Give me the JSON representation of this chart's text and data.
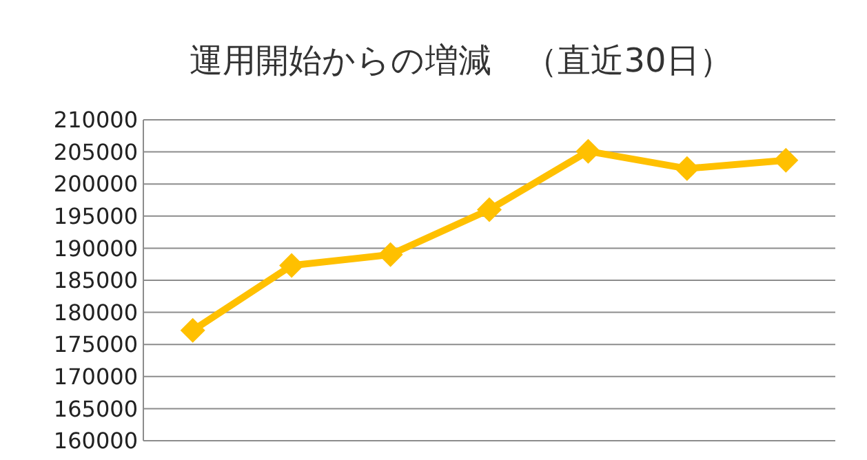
{
  "chart_data": {
    "type": "line",
    "title": "運用開始からの増減　（直近30日）",
    "categories": [
      null,
      null,
      null,
      null,
      null,
      null,
      null
    ],
    "series": [
      {
        "color": "#ffc000",
        "values": [
          177200,
          187300,
          189000,
          196000,
          205100,
          202400,
          203700
        ]
      }
    ],
    "ylim": [
      160000,
      210000
    ],
    "yticks": [
      160000,
      165000,
      170000,
      175000,
      180000,
      185000,
      190000,
      195000,
      200000,
      205000,
      210000
    ],
    "grid": "y",
    "marker": "diamond",
    "line_style": "solid"
  }
}
